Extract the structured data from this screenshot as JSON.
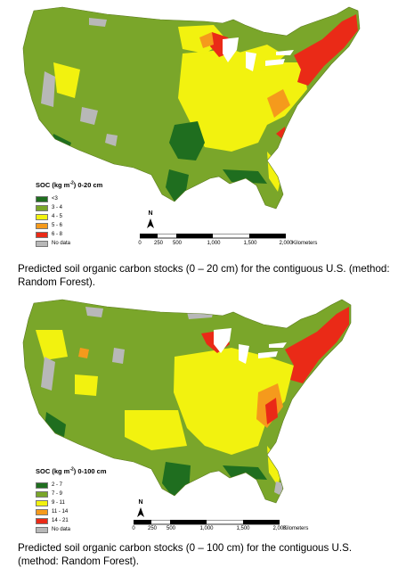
{
  "maps": [
    {
      "legend": {
        "title_main": "SOC (kg m",
        "title_exp": "-2",
        "title_rest": ") 0-20 cm",
        "items": [
          {
            "label": "<3",
            "color": "#1f6e1f"
          },
          {
            "label": "3 - 4",
            "color": "#7aa62a"
          },
          {
            "label": "4 - 5",
            "color": "#f2f20f"
          },
          {
            "label": "5 - 6",
            "color": "#f59a1c"
          },
          {
            "label": "6 - 8",
            "color": "#ea2a17"
          },
          {
            "label": "No data",
            "color": "#b8b8b8"
          }
        ]
      },
      "north_label": "N",
      "scale": {
        "ticks": [
          "0",
          "250",
          "500",
          "1,000",
          "1,500",
          "2,000"
        ],
        "unit": "Kilometers"
      },
      "caption": "Predicted soil organic carbon stocks (0 – 20 cm) for the contiguous U.S. (method: Random Forest)."
    },
    {
      "legend": {
        "title_main": "SOC (kg m",
        "title_exp": "-2",
        "title_rest": ") 0-100 cm",
        "items": [
          {
            "label": "2 - 7",
            "color": "#1f6e1f"
          },
          {
            "label": "7 - 9",
            "color": "#7aa62a"
          },
          {
            "label": "9 - 11",
            "color": "#f2f20f"
          },
          {
            "label": "11 - 14",
            "color": "#f59a1c"
          },
          {
            "label": "14 - 21",
            "color": "#ea2a17"
          },
          {
            "label": "No data",
            "color": "#b8b8b8"
          }
        ]
      },
      "north_label": "N",
      "scale": {
        "ticks": [
          "0",
          "250",
          "500",
          "1,000",
          "1,500",
          "2,000"
        ],
        "unit": "Kilometers"
      },
      "caption": "Predicted soil organic carbon stocks (0 – 100 cm) for the contiguous U.S. (method: Random Forest)."
    }
  ]
}
